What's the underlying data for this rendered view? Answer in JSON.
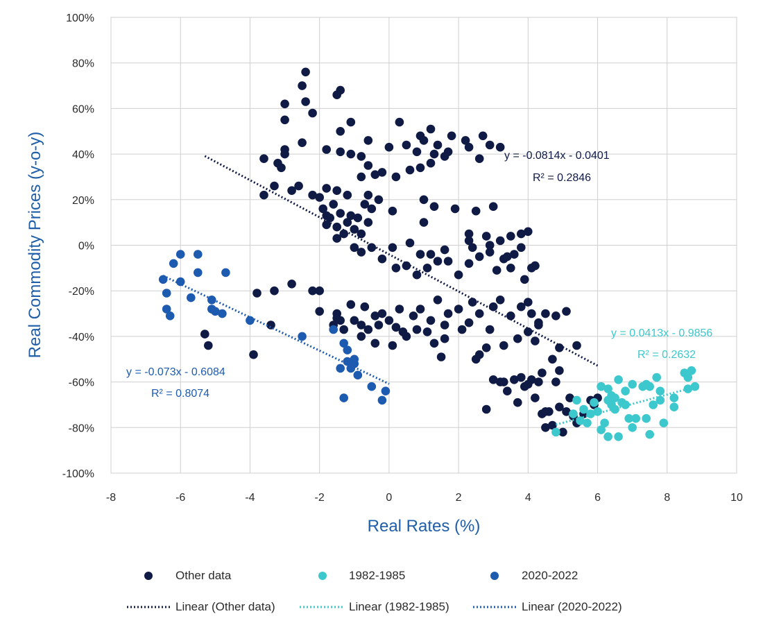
{
  "chart_data": {
    "type": "scatter",
    "xlabel": "Real Rates (%)",
    "ylabel": "Real Commodity Prices (y-o-y)",
    "xlim": [
      -8,
      10
    ],
    "ylim": [
      -100,
      100
    ],
    "x_ticks": [
      "-8",
      "-6",
      "-4",
      "-2",
      "0",
      "2",
      "4",
      "6",
      "8",
      "10"
    ],
    "y_ticks": [
      "100%",
      "80%",
      "60%",
      "40%",
      "20%",
      "0%",
      "-20%",
      "-40%",
      "-60%",
      "-80%",
      "-100%"
    ],
    "grid": true,
    "legend_position": "bottom",
    "series": [
      {
        "name": "Other data",
        "color": "#0f1a45",
        "points": [
          [
            -2.4,
            76
          ],
          [
            -2.5,
            70
          ],
          [
            -1.4,
            68
          ],
          [
            -1.5,
            66
          ],
          [
            -2.4,
            63
          ],
          [
            -3,
            62
          ],
          [
            -2.2,
            58
          ],
          [
            -3,
            55
          ],
          [
            -1.1,
            54
          ],
          [
            0.3,
            54
          ],
          [
            -1.4,
            50
          ],
          [
            1.2,
            51
          ],
          [
            0.9,
            48
          ],
          [
            1.8,
            48
          ],
          [
            2.7,
            48
          ],
          [
            2.2,
            46
          ],
          [
            1,
            46
          ],
          [
            -0.6,
            46
          ],
          [
            0.5,
            44
          ],
          [
            1.4,
            44
          ],
          [
            -2.5,
            45
          ],
          [
            -3,
            42
          ],
          [
            -1.8,
            42
          ],
          [
            -1.4,
            41
          ],
          [
            -1.1,
            40
          ],
          [
            -0.8,
            39
          ],
          [
            0,
            43
          ],
          [
            0.8,
            41
          ],
          [
            1.3,
            40
          ],
          [
            1.7,
            41
          ],
          [
            2.6,
            38
          ],
          [
            3.2,
            43
          ],
          [
            2.9,
            44
          ],
          [
            2.3,
            43
          ],
          [
            -3,
            40
          ],
          [
            -3.6,
            38
          ],
          [
            -3.2,
            36
          ],
          [
            -3.1,
            34
          ],
          [
            -0.6,
            35
          ],
          [
            -0.4,
            31
          ],
          [
            -0.8,
            30
          ],
          [
            -0.2,
            32
          ],
          [
            0.2,
            30
          ],
          [
            0.6,
            33
          ],
          [
            1.2,
            36
          ],
          [
            0.9,
            34
          ],
          [
            1.6,
            39
          ],
          [
            -3.6,
            22
          ],
          [
            -3.3,
            26
          ],
          [
            -2.6,
            26
          ],
          [
            -2.8,
            24
          ],
          [
            -2.2,
            22
          ],
          [
            -2,
            21
          ],
          [
            -1.8,
            25
          ],
          [
            -1.5,
            24
          ],
          [
            -1.2,
            22
          ],
          [
            -1.6,
            18
          ],
          [
            -1.9,
            16
          ],
          [
            -1.4,
            14
          ],
          [
            -1.7,
            12
          ],
          [
            -1.1,
            13
          ],
          [
            -1.2,
            10
          ],
          [
            -1.5,
            8
          ],
          [
            -1.8,
            9
          ],
          [
            -1,
            7
          ],
          [
            -0.9,
            12
          ],
          [
            -0.7,
            18
          ],
          [
            -0.5,
            16
          ],
          [
            -0.3,
            20
          ],
          [
            -0.6,
            22
          ],
          [
            0.1,
            15
          ],
          [
            -0.6,
            10
          ],
          [
            -0.8,
            5
          ],
          [
            -1.3,
            5
          ],
          [
            -1.5,
            3
          ],
          [
            -1.8,
            13
          ],
          [
            1,
            20
          ],
          [
            1.3,
            17
          ],
          [
            1.9,
            16
          ],
          [
            2.5,
            15
          ],
          [
            3,
            17
          ],
          [
            1,
            10
          ],
          [
            2.3,
            5
          ],
          [
            2.8,
            4
          ],
          [
            3.5,
            4
          ],
          [
            3.8,
            5
          ],
          [
            4,
            6
          ],
          [
            3.2,
            2
          ],
          [
            2.4,
            -1
          ],
          [
            2.9,
            -3
          ],
          [
            3.6,
            -4
          ],
          [
            4.2,
            -9
          ],
          [
            4.1,
            -10
          ],
          [
            3.9,
            -15
          ],
          [
            3.5,
            -10
          ],
          [
            3.1,
            -11
          ],
          [
            2.6,
            -5
          ],
          [
            2.3,
            -8
          ],
          [
            2,
            -13
          ],
          [
            1.7,
            -7
          ],
          [
            1.4,
            -7
          ],
          [
            1.1,
            -10
          ],
          [
            0.8,
            -13
          ],
          [
            0.5,
            -9
          ],
          [
            0.2,
            -10
          ],
          [
            -0.2,
            -6
          ],
          [
            -0.5,
            -1
          ],
          [
            -0.8,
            -3
          ],
          [
            -1,
            -1
          ],
          [
            0.1,
            -1
          ],
          [
            0.6,
            1
          ],
          [
            0.9,
            -4
          ],
          [
            1.2,
            -4
          ],
          [
            1.6,
            -2
          ],
          [
            2.3,
            2
          ],
          [
            2.9,
            0
          ],
          [
            3.3,
            -6
          ],
          [
            3.8,
            -1
          ],
          [
            4.2,
            -9
          ],
          [
            3.4,
            -5
          ],
          [
            -3.8,
            -21
          ],
          [
            -3.3,
            -20
          ],
          [
            -2.8,
            -17
          ],
          [
            -2.2,
            -20
          ],
          [
            -2,
            -20
          ],
          [
            -2,
            -29
          ],
          [
            -1.4,
            -33
          ],
          [
            -1.5,
            -30
          ],
          [
            -1.1,
            -26
          ],
          [
            -0.7,
            -27
          ],
          [
            -0.4,
            -31
          ],
          [
            -0.8,
            -35
          ],
          [
            -1,
            -33
          ],
          [
            -0.6,
            -37
          ],
          [
            -0.3,
            -35
          ],
          [
            0,
            -33
          ],
          [
            0.2,
            -36
          ],
          [
            0.4,
            -38
          ],
          [
            0.7,
            -31
          ],
          [
            0.9,
            -28
          ],
          [
            1.2,
            -33
          ],
          [
            1.4,
            -24
          ],
          [
            1.7,
            -30
          ],
          [
            2,
            -28
          ],
          [
            2.3,
            -34
          ],
          [
            2.6,
            -30
          ],
          [
            2.9,
            -37
          ],
          [
            3.2,
            -24
          ],
          [
            3.5,
            -31
          ],
          [
            3.8,
            -27
          ],
          [
            4.1,
            -30
          ],
          [
            4.3,
            -34
          ],
          [
            4.5,
            -30
          ],
          [
            4.8,
            -31
          ],
          [
            5.1,
            -29
          ],
          [
            4,
            -38
          ],
          [
            4.2,
            -42
          ],
          [
            3.7,
            -41
          ],
          [
            3.3,
            -44
          ],
          [
            2.8,
            -45
          ],
          [
            2.5,
            -50
          ],
          [
            2.1,
            -37
          ],
          [
            1.6,
            -41
          ],
          [
            1.3,
            -43
          ],
          [
            1.1,
            -38
          ],
          [
            0.5,
            -40
          ],
          [
            0.1,
            -44
          ],
          [
            -0.4,
            -43
          ],
          [
            -0.8,
            -40
          ],
          [
            -1.3,
            -37
          ],
          [
            -1.5,
            -32
          ],
          [
            -0.2,
            -30
          ],
          [
            0.3,
            -28
          ],
          [
            1.6,
            -35
          ],
          [
            2.4,
            -25
          ],
          [
            3,
            -27
          ],
          [
            4,
            -25
          ],
          [
            4.3,
            -35
          ],
          [
            5.4,
            -44
          ],
          [
            -5.3,
            -39
          ],
          [
            -5.2,
            -44
          ],
          [
            -3.4,
            -35
          ],
          [
            -3.9,
            -48
          ],
          [
            -1.6,
            -35
          ],
          [
            0.8,
            -37
          ],
          [
            1.5,
            -49
          ],
          [
            2.6,
            -48
          ],
          [
            2.8,
            -72
          ],
          [
            3.2,
            -60
          ],
          [
            3.6,
            -59
          ],
          [
            3.9,
            -62
          ],
          [
            4.2,
            -67
          ],
          [
            4.4,
            -74
          ],
          [
            4.6,
            -73
          ],
          [
            4.9,
            -71
          ],
          [
            5.1,
            -73
          ],
          [
            5.3,
            -75
          ],
          [
            5.6,
            -74
          ],
          [
            5.9,
            -70
          ],
          [
            5,
            -82
          ],
          [
            5.4,
            -78
          ],
          [
            4.3,
            -60
          ],
          [
            4,
            -61
          ],
          [
            3.4,
            -64
          ],
          [
            4.9,
            -45
          ],
          [
            4.7,
            -50
          ],
          [
            4.4,
            -56
          ],
          [
            4.8,
            -60
          ],
          [
            5.2,
            -67
          ],
          [
            5.8,
            -68
          ],
          [
            6,
            -67
          ],
          [
            4.5,
            -80
          ],
          [
            3.7,
            -69
          ],
          [
            3,
            -59
          ],
          [
            3.3,
            -60
          ],
          [
            4.1,
            -59
          ],
          [
            3.8,
            -58
          ],
          [
            4.5,
            -73
          ],
          [
            4.7,
            -79
          ],
          [
            4.9,
            -55
          ]
        ],
        "trendline": {
          "label": "Linear (Other data)",
          "from": [
            -5.3,
            39.14
          ],
          "to": [
            6,
            -52.85
          ],
          "equation": "y = -0.0814x - 0.0401",
          "r2": "R² = 0.2846"
        }
      },
      {
        "name": "1982-1985",
        "color": "#3cc8cc",
        "points": [
          [
            4.8,
            -82
          ],
          [
            5.3,
            -74
          ],
          [
            5.4,
            -68
          ],
          [
            5.5,
            -77
          ],
          [
            5.7,
            -78
          ],
          [
            5.8,
            -74
          ],
          [
            5.9,
            -69
          ],
          [
            6,
            -73
          ],
          [
            6.1,
            -81
          ],
          [
            6.2,
            -78
          ],
          [
            6.3,
            -68
          ],
          [
            6.3,
            -63
          ],
          [
            6.4,
            -70
          ],
          [
            6.5,
            -72
          ],
          [
            6.5,
            -67
          ],
          [
            6.6,
            -59
          ],
          [
            6.7,
            -69
          ],
          [
            6.8,
            -70
          ],
          [
            6.9,
            -76
          ],
          [
            7,
            -61
          ],
          [
            7.1,
            -76
          ],
          [
            7.3,
            -62
          ],
          [
            7.4,
            -61
          ],
          [
            7.4,
            -76
          ],
          [
            7.5,
            -62
          ],
          [
            7.6,
            -70
          ],
          [
            7.7,
            -58
          ],
          [
            7.8,
            -64
          ],
          [
            7.8,
            -68
          ],
          [
            8.2,
            -67
          ],
          [
            8.2,
            -71
          ],
          [
            8.5,
            -56
          ],
          [
            8.6,
            -58
          ],
          [
            8.6,
            -63
          ],
          [
            8.7,
            -55
          ],
          [
            8.8,
            -62
          ],
          [
            6.3,
            -84
          ],
          [
            6.6,
            -84
          ],
          [
            7,
            -80
          ],
          [
            7.5,
            -83
          ],
          [
            7.9,
            -78
          ],
          [
            6.1,
            -62
          ],
          [
            6.4,
            -66
          ],
          [
            5.6,
            -72
          ],
          [
            6.8,
            -64
          ]
        ],
        "trendline": {
          "label": "Linear (1982-1985)",
          "from": [
            4.8,
            -78.73
          ],
          "to": [
            8.8,
            -62.22
          ],
          "equation": "y = 0.0413x - 0.9856",
          "r2": "R² = 0.2632"
        }
      },
      {
        "name": "2020-2022",
        "color": "#1d5bb0",
        "points": [
          [
            -6.5,
            -15
          ],
          [
            -6.4,
            -21
          ],
          [
            -6.4,
            -28
          ],
          [
            -6.3,
            -31
          ],
          [
            -6.2,
            -8
          ],
          [
            -6,
            -16
          ],
          [
            -6,
            -4
          ],
          [
            -5.7,
            -23
          ],
          [
            -5.5,
            -12
          ],
          [
            -5.5,
            -4
          ],
          [
            -5.1,
            -24
          ],
          [
            -5.1,
            -28
          ],
          [
            -5,
            -29
          ],
          [
            -4.8,
            -30
          ],
          [
            -4.7,
            -12
          ],
          [
            -4,
            -33
          ],
          [
            -2.5,
            -40
          ],
          [
            -1.6,
            -37
          ],
          [
            -1.3,
            -43
          ],
          [
            -1.2,
            -46
          ],
          [
            -1.2,
            -51
          ],
          [
            -1.1,
            -54
          ],
          [
            -1,
            -50
          ],
          [
            -0.9,
            -57
          ],
          [
            -1.3,
            -67
          ],
          [
            -0.5,
            -62
          ],
          [
            -0.2,
            -68
          ],
          [
            -0.1,
            -64
          ],
          [
            -1.4,
            -54
          ],
          [
            -1,
            -52
          ]
        ],
        "trendline": {
          "label": "Linear (2020-2022)",
          "from": [
            -6.5,
            -13.39
          ],
          "to": [
            0,
            -60.84
          ],
          "equation": "y = -0.073x - 0.6084",
          "r2": "R² = 0.8074"
        }
      }
    ]
  }
}
